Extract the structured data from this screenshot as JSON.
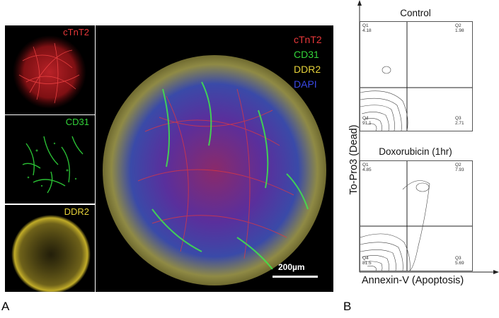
{
  "panel_a": {
    "letter": "A",
    "tiles": {
      "ctnt2": {
        "label": "cTnT2",
        "color": "#e8383a"
      },
      "cd31": {
        "label": "CD31",
        "color": "#33d43a"
      },
      "ddr2": {
        "label": "DDR2",
        "color": "#e6d23a"
      }
    },
    "merge": {
      "legend": [
        {
          "label": "cTnT2",
          "color": "#e8383a"
        },
        {
          "label": "CD31",
          "color": "#33d43a"
        },
        {
          "label": "DDR2",
          "color": "#e6d23a"
        },
        {
          "label": "DAPI",
          "color": "#3a48e6"
        }
      ],
      "scalebar_label": "200µm"
    }
  },
  "panel_b": {
    "letter": "B",
    "y_axis_label": "To-Pro3 (Dead)",
    "x_axis_label": "Annexin-V (Apoptosis)",
    "plots": [
      {
        "title": "Control",
        "quadrants": {
          "q1": {
            "name": "Q1",
            "value": "4.18"
          },
          "q2": {
            "name": "Q2",
            "value": "1.98"
          },
          "q3": {
            "name": "Q3",
            "value": "2.71"
          },
          "q4": {
            "name": "Q4",
            "value": "91.1"
          }
        }
      },
      {
        "title": "Doxorubicin (1hr)",
        "quadrants": {
          "q1": {
            "name": "Q1",
            "value": "4.85"
          },
          "q2": {
            "name": "Q2",
            "value": "7.93"
          },
          "q3": {
            "name": "Q3",
            "value": "5.69"
          },
          "q4": {
            "name": "Q4",
            "value": "81.5"
          }
        }
      }
    ]
  }
}
